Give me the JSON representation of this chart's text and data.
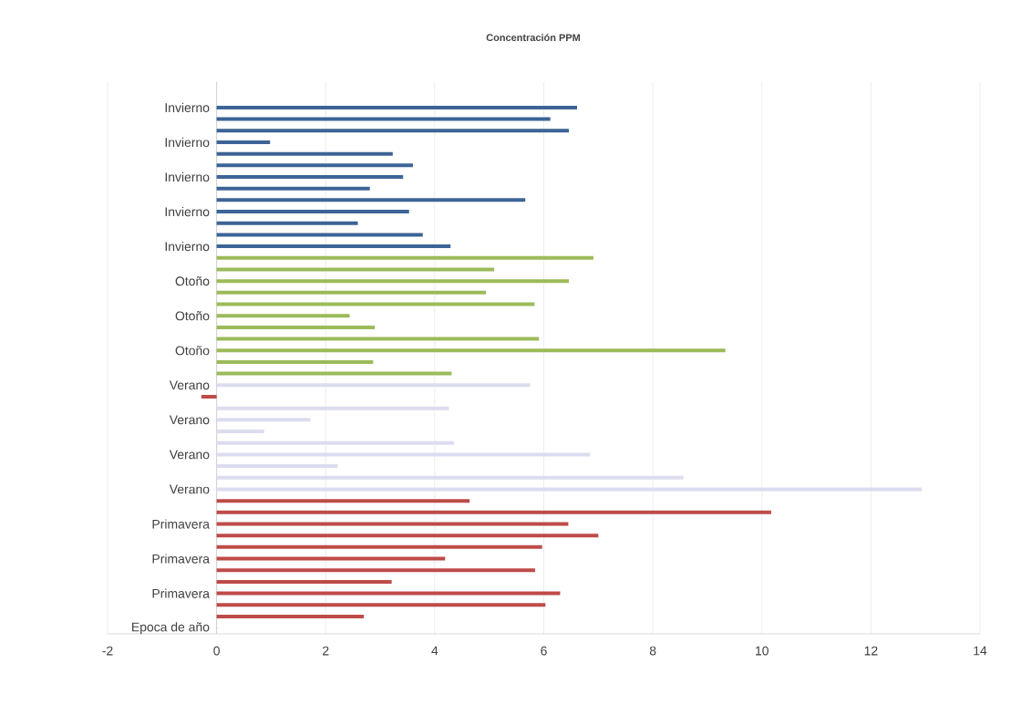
{
  "chart_data": {
    "type": "bar",
    "orientation": "horizontal",
    "title": "Concentración PPM",
    "categories": [
      "Invierno",
      null,
      null,
      "Invierno",
      null,
      null,
      "Invierno",
      null,
      null,
      "Invierno",
      null,
      null,
      "Invierno",
      null,
      null,
      "Otoño",
      null,
      null,
      "Otoño",
      null,
      null,
      "Otoño",
      null,
      null,
      "Verano",
      null,
      null,
      "Verano",
      null,
      null,
      "Verano",
      null,
      null,
      "Verano",
      null,
      null,
      "Primavera",
      null,
      null,
      "Primavera",
      null,
      null,
      "Primavera",
      null,
      null,
      "Epoca de año"
    ],
    "values": [
      6.61,
      6.12,
      6.46,
      0.98,
      3.23,
      3.6,
      3.42,
      2.81,
      5.66,
      3.53,
      2.59,
      3.78,
      4.29,
      6.91,
      5.09,
      6.46,
      4.94,
      5.83,
      2.44,
      2.9,
      5.91,
      9.33,
      2.87,
      4.31,
      5.75,
      -0.28,
      4.26,
      1.72,
      0.87,
      4.35,
      6.85,
      2.22,
      8.56,
      12.93,
      4.64,
      10.17,
      6.45,
      7.0,
      5.97,
      4.19,
      5.84,
      3.21,
      6.3,
      6.03,
      2.7,
      null
    ],
    "colors": [
      "#3c6496",
      "#3c6496",
      "#3c6496",
      "#3c6496",
      "#3c6496",
      "#3c6496",
      "#3c6496",
      "#3c6496",
      "#3c6496",
      "#3c6496",
      "#3c6496",
      "#3c6496",
      "#3c6496",
      "#9bbb59",
      "#9bbb59",
      "#9bbb59",
      "#9bbb59",
      "#9bbb59",
      "#9bbb59",
      "#9bbb59",
      "#9bbb59",
      "#9bbb59",
      "#9bbb59",
      "#9bbb59",
      "#dcdcf0",
      "#be4b48",
      "#dcdcf0",
      "#dcdcf0",
      "#dcdcf0",
      "#dcdcf0",
      "#dcdcf0",
      "#dcdcf0",
      "#dcdcf0",
      "#dcdcf0",
      "#be4b48",
      "#be4b48",
      "#be4b48",
      "#be4b48",
      "#be4b48",
      "#be4b48",
      "#be4b48",
      "#be4b48",
      "#be4b48",
      "#be4b48",
      "#be4b48",
      "#be4b48"
    ],
    "xlim": [
      -2,
      14
    ],
    "xticks": [
      -2,
      0,
      2,
      4,
      6,
      8,
      10,
      12,
      14
    ],
    "grid": "x"
  }
}
